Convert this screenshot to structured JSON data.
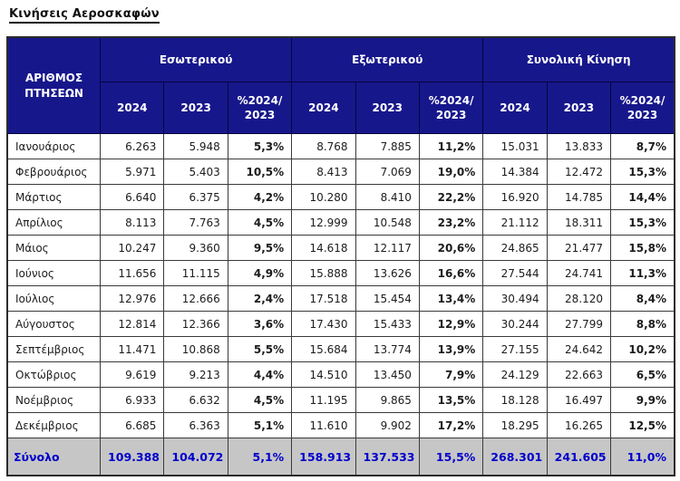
{
  "page_title": "Κινήσεις Αεροσκαφών",
  "colors": {
    "header_bg": "#17178C",
    "header_text": "#FFFFFF",
    "total_row_bg": "#C6C6C6",
    "total_row_text": "#0000CC",
    "grid_border": "#3A3A3A",
    "data_text": "#1C1C1C"
  },
  "table": {
    "corner_header": "ΑΡΙΘΜΟΣ\nΠΤΗΣΕΩΝ",
    "groups": [
      "Εσωτερικού",
      "Εξωτερικού",
      "Συνολική Κίνηση"
    ],
    "sub_headers": [
      "2024",
      "2023",
      "%2024/\n2023"
    ],
    "rows": [
      {
        "month": "Ιανουάριος",
        "values": [
          "6.263",
          "5.948",
          "5,3%",
          "8.768",
          "7.885",
          "11,2%",
          "15.031",
          "13.833",
          "8,7%"
        ]
      },
      {
        "month": "Φεβρουάριος",
        "values": [
          "5.971",
          "5.403",
          "10,5%",
          "8.413",
          "7.069",
          "19,0%",
          "14.384",
          "12.472",
          "15,3%"
        ]
      },
      {
        "month": "Μάρτιος",
        "values": [
          "6.640",
          "6.375",
          "4,2%",
          "10.280",
          "8.410",
          "22,2%",
          "16.920",
          "14.785",
          "14,4%"
        ]
      },
      {
        "month": "Απρίλιος",
        "values": [
          "8.113",
          "7.763",
          "4,5%",
          "12.999",
          "10.548",
          "23,2%",
          "21.112",
          "18.311",
          "15,3%"
        ]
      },
      {
        "month": "Μάιος",
        "values": [
          "10.247",
          "9.360",
          "9,5%",
          "14.618",
          "12.117",
          "20,6%",
          "24.865",
          "21.477",
          "15,8%"
        ]
      },
      {
        "month": "Ιούνιος",
        "values": [
          "11.656",
          "11.115",
          "4,9%",
          "15.888",
          "13.626",
          "16,6%",
          "27.544",
          "24.741",
          "11,3%"
        ]
      },
      {
        "month": "Ιούλιος",
        "values": [
          "12.976",
          "12.666",
          "2,4%",
          "17.518",
          "15.454",
          "13,4%",
          "30.494",
          "28.120",
          "8,4%"
        ]
      },
      {
        "month": "Αύγουστος",
        "values": [
          "12.814",
          "12.366",
          "3,6%",
          "17.430",
          "15.433",
          "12,9%",
          "30.244",
          "27.799",
          "8,8%"
        ]
      },
      {
        "month": "Σεπτέμβριος",
        "values": [
          "11.471",
          "10.868",
          "5,5%",
          "15.684",
          "13.774",
          "13,9%",
          "27.155",
          "24.642",
          "10,2%"
        ]
      },
      {
        "month": "Οκτώβριος",
        "values": [
          "9.619",
          "9.213",
          "4,4%",
          "14.510",
          "13.450",
          "7,9%",
          "24.129",
          "22.663",
          "6,5%"
        ]
      },
      {
        "month": "Νοέμβριος",
        "values": [
          "6.933",
          "6.632",
          "4,5%",
          "11.195",
          "9.865",
          "13,5%",
          "18.128",
          "16.497",
          "9,9%"
        ]
      },
      {
        "month": "Δεκέμβριος",
        "values": [
          "6.685",
          "6.363",
          "5,1%",
          "11.610",
          "9.902",
          "17,2%",
          "18.295",
          "16.265",
          "12,5%"
        ]
      }
    ],
    "total": {
      "label": "Σύνολο",
      "values": [
        "109.388",
        "104.072",
        "5,1%",
        "158.913",
        "137.533",
        "15,5%",
        "268.301",
        "241.605",
        "11,0%"
      ]
    }
  },
  "chart_data": {
    "type": "table",
    "title": "Κινήσεις Αεροσκαφών",
    "categories": [
      "Ιανουάριος",
      "Φεβρουάριος",
      "Μάρτιος",
      "Απρίλιος",
      "Μάιος",
      "Ιούνιος",
      "Ιούλιος",
      "Αύγουστος",
      "Σεπτέμβριος",
      "Οκτώβριος",
      "Νοέμβριος",
      "Δεκέμβριος"
    ],
    "series": [
      {
        "name": "Εσωτερικού 2024",
        "values": [
          6263,
          5971,
          6640,
          8113,
          10247,
          11656,
          12976,
          12814,
          11471,
          9619,
          6933,
          6685
        ],
        "total": 109388
      },
      {
        "name": "Εσωτερικού 2023",
        "values": [
          5948,
          5403,
          6375,
          7763,
          9360,
          11115,
          12666,
          12366,
          10868,
          9213,
          6632,
          6363
        ],
        "total": 104072
      },
      {
        "name": "Εσωτερικού %2024/2023",
        "values": [
          5.3,
          10.5,
          4.2,
          4.5,
          9.5,
          4.9,
          2.4,
          3.6,
          5.5,
          4.4,
          4.5,
          5.1
        ],
        "total": 5.1
      },
      {
        "name": "Εξωτερικού 2024",
        "values": [
          8768,
          8413,
          10280,
          12999,
          14618,
          15888,
          17518,
          17430,
          15684,
          14510,
          11195,
          11610
        ],
        "total": 158913
      },
      {
        "name": "Εξωτερικού 2023",
        "values": [
          7885,
          7069,
          8410,
          10548,
          12117,
          13626,
          15454,
          15433,
          13774,
          13450,
          9865,
          9902
        ],
        "total": 137533
      },
      {
        "name": "Εξωτερικού %2024/2023",
        "values": [
          11.2,
          19.0,
          22.2,
          23.2,
          20.6,
          16.6,
          13.4,
          12.9,
          13.9,
          7.9,
          13.5,
          17.2
        ],
        "total": 15.5
      },
      {
        "name": "Συνολική Κίνηση 2024",
        "values": [
          15031,
          14384,
          16920,
          21112,
          24865,
          27544,
          30494,
          30244,
          27155,
          24129,
          18128,
          18295
        ],
        "total": 268301
      },
      {
        "name": "Συνολική Κίνηση 2023",
        "values": [
          13833,
          12472,
          14785,
          18311,
          21477,
          24741,
          28120,
          27799,
          24642,
          22663,
          16497,
          16265
        ],
        "total": 241605
      },
      {
        "name": "Συνολική Κίνηση %2024/2023",
        "values": [
          8.7,
          15.3,
          14.4,
          15.3,
          15.8,
          11.3,
          8.4,
          8.8,
          10.2,
          6.5,
          9.9,
          12.5
        ],
        "total": 11.0
      }
    ]
  }
}
